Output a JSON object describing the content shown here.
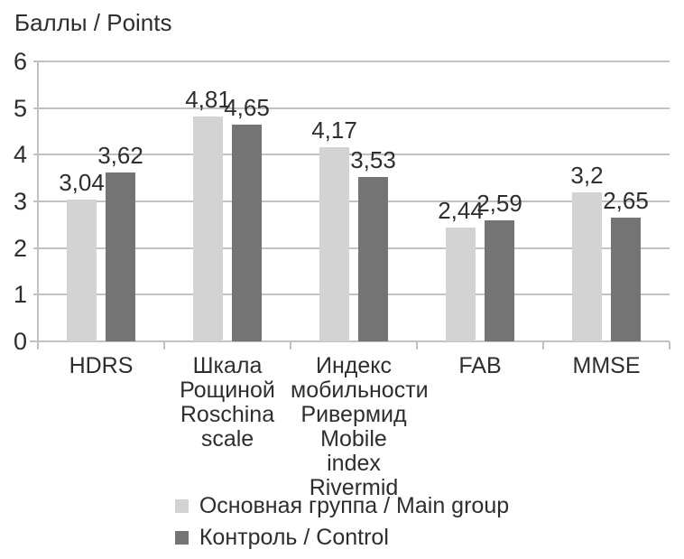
{
  "chart_data": {
    "type": "bar",
    "ylabel": "Баллы / Points",
    "ylim": [
      0,
      6
    ],
    "yticks": [
      0,
      1,
      2,
      3,
      4,
      5,
      6
    ],
    "grid": true,
    "legend_position": "bottom",
    "decimal_separator": ",",
    "categories": [
      [
        "HDRS"
      ],
      [
        "Шкала",
        "Рощиной",
        "Roschina",
        "scale"
      ],
      [
        "Индекс",
        "мобильности",
        "Ривермид",
        "Mobile index",
        "Rivermid"
      ],
      [
        "FAB"
      ],
      [
        "MMSE"
      ]
    ],
    "series": [
      {
        "key": "main-group",
        "name": "Основная группа / Main group",
        "color": "#d3d3d3",
        "values": [
          3.04,
          4.81,
          4.17,
          2.44,
          3.2
        ],
        "labels": [
          "3,04",
          "4,81",
          "4,17",
          "2,44",
          "3,2"
        ]
      },
      {
        "key": "control",
        "name": "Контроль / Control",
        "color": "#747474",
        "values": [
          3.62,
          4.65,
          3.53,
          2.59,
          2.65
        ],
        "labels": [
          "3,62",
          "4,65",
          "3,53",
          "2,59",
          "2,65"
        ]
      }
    ]
  },
  "colors": {
    "gridline": "#c2c2c2",
    "axis": "#c2c2c2",
    "text": "#2e2e2e",
    "background": "#ffffff"
  }
}
